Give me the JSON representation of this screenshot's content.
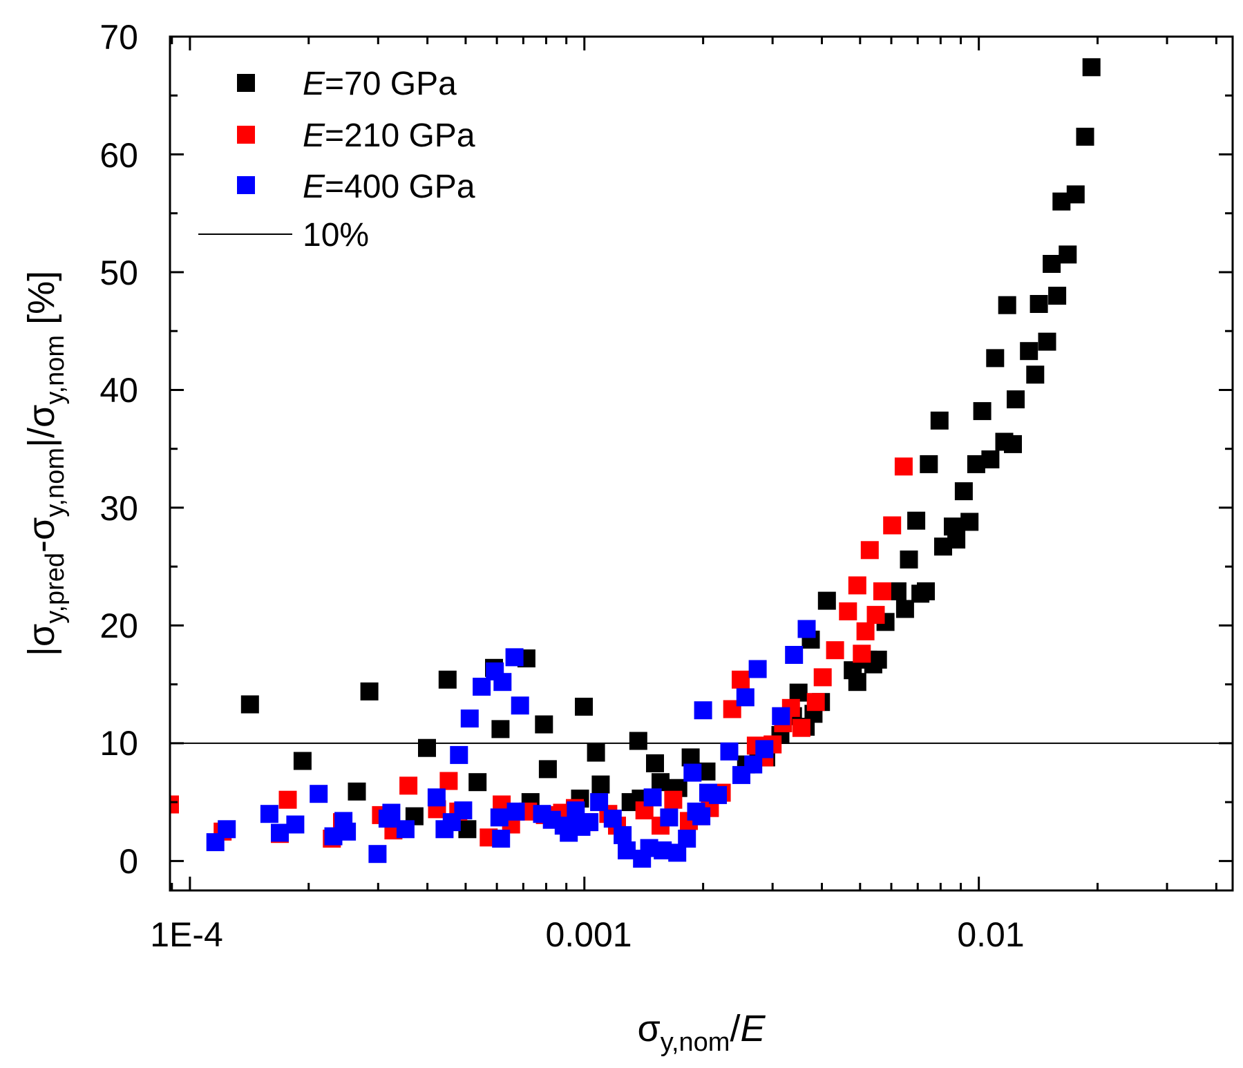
{
  "chart_data": {
    "type": "scatter",
    "title": "",
    "xscale": "log",
    "xlim": [
      8.9e-05,
      0.044
    ],
    "ylim": [
      -2.5,
      70
    ],
    "xticks": [
      0.0001,
      0.001,
      0.01
    ],
    "xtick_labels": [
      "1E-4",
      "0.001",
      "0.01"
    ],
    "yticks": [
      0,
      10,
      20,
      30,
      40,
      50,
      60,
      70
    ],
    "ytick_labels": [
      "0",
      "10",
      "20",
      "30",
      "40",
      "50",
      "60",
      "70"
    ],
    "xlabel": {
      "sigma": "σ",
      "sub": "y,nom",
      "slash": "/",
      "E": "E"
    },
    "ylabel": {
      "bar1": "|",
      "s1": "σ",
      "sub1": "y,pred",
      "dash": "-",
      "s2": "σ",
      "sub2": "y,nom",
      "bar2": "|/",
      "s3": "σ",
      "sub3": "y,nom",
      "unit": " [%]"
    },
    "legend": {
      "position": "top-left",
      "entries": [
        {
          "label_e": "E",
          "label_rest": "=70 GPa",
          "color": "#000000",
          "marker": "square"
        },
        {
          "label_e": "E",
          "label_rest": "=210 GPa",
          "color": "#ff0000",
          "marker": "square"
        },
        {
          "label_e": "E",
          "label_rest": "=400 GPa",
          "color": "#0000ff",
          "marker": "square"
        },
        {
          "label": "10%",
          "color": "#000000",
          "marker": "line"
        }
      ]
    },
    "reference_line": {
      "y": 10,
      "label": "10%"
    },
    "series": [
      {
        "name": "E=70 GPa",
        "color": "#000000",
        "points": [
          [
            0.000142,
            13.3
          ],
          [
            0.000193,
            8.5
          ],
          [
            0.000265,
            5.9
          ],
          [
            0.000285,
            14.4
          ],
          [
            0.000371,
            3.8
          ],
          [
            0.000399,
            9.6
          ],
          [
            0.00045,
            15.4
          ],
          [
            0.000505,
            2.7
          ],
          [
            0.000536,
            6.7
          ],
          [
            0.00059,
            16.4
          ],
          [
            0.000613,
            11.2
          ],
          [
            0.000713,
            17.2
          ],
          [
            0.00073,
            5.0
          ],
          [
            0.00079,
            11.6
          ],
          [
            0.000808,
            7.8
          ],
          [
            0.000896,
            4.0
          ],
          [
            0.000975,
            5.3
          ],
          [
            0.000997,
            13.1
          ],
          [
            0.00107,
            9.2
          ],
          [
            0.0011,
            6.5
          ],
          [
            0.00131,
            5.0
          ],
          [
            0.00137,
            10.2
          ],
          [
            0.00139,
            5.3
          ],
          [
            0.00151,
            8.3
          ],
          [
            0.00156,
            6.7
          ],
          [
            0.00173,
            6.2
          ],
          [
            0.00186,
            8.8
          ],
          [
            0.00204,
            7.6
          ],
          [
            0.00257,
            8.2
          ],
          [
            0.00276,
            9.7
          ],
          [
            0.00289,
            8.8
          ],
          [
            0.00314,
            10.7
          ],
          [
            0.00338,
            12.3
          ],
          [
            0.00349,
            14.3
          ],
          [
            0.00364,
            11.4
          ],
          [
            0.00375,
            18.8
          ],
          [
            0.00381,
            12.5
          ],
          [
            0.00398,
            13.5
          ],
          [
            0.00412,
            22.1
          ],
          [
            0.00479,
            16.2
          ],
          [
            0.00492,
            15.2
          ],
          [
            0.00524,
            17.1
          ],
          [
            0.0054,
            16.7
          ],
          [
            0.00555,
            17.1
          ],
          [
            0.0058,
            20.3
          ],
          [
            0.00622,
            22.9
          ],
          [
            0.0065,
            21.4
          ],
          [
            0.00665,
            25.6
          ],
          [
            0.00694,
            28.9
          ],
          [
            0.00711,
            22.7
          ],
          [
            0.00734,
            22.9
          ],
          [
            0.00747,
            33.7
          ],
          [
            0.00795,
            37.4
          ],
          [
            0.00812,
            26.7
          ],
          [
            0.00859,
            28.4
          ],
          [
            0.00877,
            27.3
          ],
          [
            0.00916,
            31.4
          ],
          [
            0.00947,
            28.8
          ],
          [
            0.00985,
            33.7
          ],
          [
            0.0102,
            38.2
          ],
          [
            0.0107,
            34.1
          ],
          [
            0.011,
            42.7
          ],
          [
            0.0116,
            35.6
          ],
          [
            0.0118,
            47.2
          ],
          [
            0.0122,
            35.4
          ],
          [
            0.0124,
            39.2
          ],
          [
            0.0134,
            43.3
          ],
          [
            0.0139,
            41.3
          ],
          [
            0.0142,
            47.3
          ],
          [
            0.0149,
            44.1
          ],
          [
            0.0153,
            50.7
          ],
          [
            0.0158,
            48.0
          ],
          [
            0.0162,
            56.0
          ],
          [
            0.0168,
            51.5
          ],
          [
            0.0176,
            56.6
          ],
          [
            0.0186,
            61.5
          ],
          [
            0.0193,
            67.4
          ]
        ]
      },
      {
        "name": "E=210 GPa",
        "color": "#ff0000",
        "points": [
          [
            8.9e-05,
            4.8
          ],
          [
            0.000121,
            2.5
          ],
          [
            0.000169,
            2.3
          ],
          [
            0.000177,
            5.2
          ],
          [
            0.000229,
            1.9
          ],
          [
            0.000243,
            3.3
          ],
          [
            0.000305,
            3.9
          ],
          [
            0.000328,
            2.6
          ],
          [
            0.000358,
            6.4
          ],
          [
            0.000423,
            4.4
          ],
          [
            0.000453,
            6.8
          ],
          [
            0.000479,
            4.2
          ],
          [
            0.000572,
            2.0
          ],
          [
            0.000617,
            4.8
          ],
          [
            0.000652,
            3.1
          ],
          [
            0.00072,
            4.2
          ],
          [
            0.000794,
            3.9
          ],
          [
            0.000878,
            4.1
          ],
          [
            0.000946,
            4.5
          ],
          [
            0.00102,
            3.3
          ],
          [
            0.00115,
            4.0
          ],
          [
            0.00121,
            3.0
          ],
          [
            0.00142,
            4.3
          ],
          [
            0.00156,
            3.0
          ],
          [
            0.00168,
            5.2
          ],
          [
            0.00184,
            3.4
          ],
          [
            0.00196,
            3.8
          ],
          [
            0.00208,
            4.5
          ],
          [
            0.00223,
            5.8
          ],
          [
            0.00237,
            12.9
          ],
          [
            0.00249,
            15.4
          ],
          [
            0.00272,
            9.8
          ],
          [
            0.00286,
            8.8
          ],
          [
            0.003,
            9.9
          ],
          [
            0.00319,
            11.7
          ],
          [
            0.00334,
            13.0
          ],
          [
            0.00355,
            11.3
          ],
          [
            0.00386,
            13.5
          ],
          [
            0.00402,
            15.6
          ],
          [
            0.00432,
            17.9
          ],
          [
            0.00466,
            21.2
          ],
          [
            0.00492,
            23.4
          ],
          [
            0.00505,
            17.6
          ],
          [
            0.00516,
            19.5
          ],
          [
            0.00529,
            26.4
          ],
          [
            0.00548,
            20.9
          ],
          [
            0.00569,
            22.9
          ],
          [
            0.00603,
            28.5
          ],
          [
            0.00645,
            33.5
          ]
        ]
      },
      {
        "name": "E=400 GPa",
        "color": "#0000ff",
        "points": [
          [
            0.000116,
            1.6
          ],
          [
            0.000124,
            2.7
          ],
          [
            0.000159,
            4.0
          ],
          [
            0.000169,
            2.4
          ],
          [
            0.000185,
            3.1
          ],
          [
            0.000212,
            5.7
          ],
          [
            0.000231,
            2.1
          ],
          [
            0.000245,
            3.4
          ],
          [
            0.00025,
            2.5
          ],
          [
            0.000299,
            0.6
          ],
          [
            0.000317,
            3.6
          ],
          [
            0.000324,
            4.1
          ],
          [
            0.000352,
            2.7
          ],
          [
            0.000422,
            5.4
          ],
          [
            0.000442,
            2.7
          ],
          [
            0.000461,
            3.3
          ],
          [
            0.000481,
            9.0
          ],
          [
            0.000493,
            4.3
          ],
          [
            0.000512,
            12.1
          ],
          [
            0.000549,
            14.8
          ],
          [
            0.000593,
            16.1
          ],
          [
            0.000609,
            3.7
          ],
          [
            0.000615,
            1.9
          ],
          [
            0.00062,
            15.2
          ],
          [
            0.000665,
            17.3
          ],
          [
            0.00067,
            4.2
          ],
          [
            0.000687,
            13.2
          ],
          [
            0.000781,
            4.0
          ],
          [
            0.000827,
            3.5
          ],
          [
            0.000886,
            3.0
          ],
          [
            0.000913,
            2.4
          ],
          [
            0.000951,
            4.3
          ],
          [
            0.000983,
            2.9
          ],
          [
            0.00103,
            3.3
          ],
          [
            0.00109,
            5.0
          ],
          [
            0.00118,
            3.6
          ],
          [
            0.00125,
            2.2
          ],
          [
            0.00128,
            0.9
          ],
          [
            0.0014,
            0.2
          ],
          [
            0.00146,
            1.1
          ],
          [
            0.00149,
            5.4
          ],
          [
            0.00158,
            0.9
          ],
          [
            0.00164,
            3.7
          ],
          [
            0.00172,
            0.7
          ],
          [
            0.00182,
            1.9
          ],
          [
            0.00188,
            7.5
          ],
          [
            0.00192,
            4.2
          ],
          [
            0.00198,
            3.8
          ],
          [
            0.002,
            12.8
          ],
          [
            0.00206,
            5.8
          ],
          [
            0.00218,
            5.6
          ],
          [
            0.00233,
            9.3
          ],
          [
            0.0025,
            7.3
          ],
          [
            0.00256,
            13.9
          ],
          [
            0.00268,
            8.2
          ],
          [
            0.00275,
            16.3
          ],
          [
            0.00286,
            9.5
          ],
          [
            0.00315,
            12.3
          ],
          [
            0.0034,
            17.5
          ],
          [
            0.00366,
            19.7
          ]
        ]
      }
    ]
  }
}
